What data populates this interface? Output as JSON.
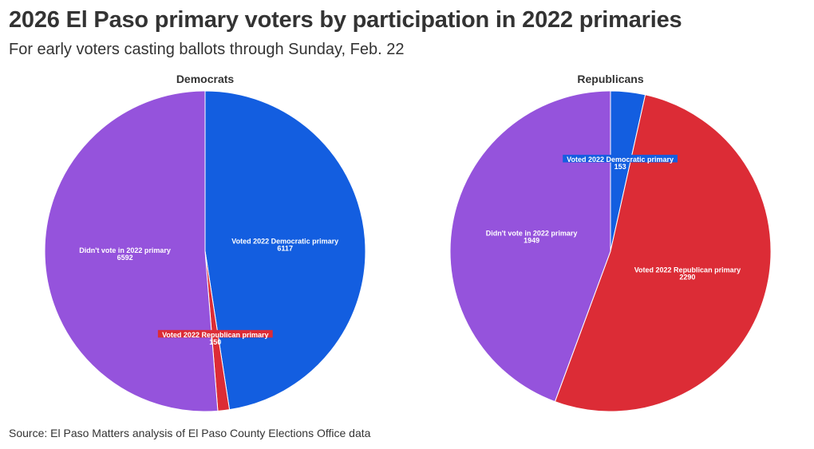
{
  "title": "2026 El Paso primary voters by participation in 2022 primaries",
  "subtitle": "For early voters casting ballots through Sunday, Feb. 22",
  "source": "Source: El Paso Matters analysis of El Paso County Elections Office data",
  "colors": {
    "democratic": "#135ee0",
    "republican": "#dc2c36",
    "didnt_vote": "#9553dc"
  },
  "chart_data": [
    {
      "type": "pie",
      "title": "Democrats",
      "slices": [
        {
          "label": "Voted 2022 Democratic primary",
          "value": 6117,
          "color": "#135ee0"
        },
        {
          "label": "Voted 2022 Republican primary",
          "value": 150,
          "color": "#dc2c36"
        },
        {
          "label": "Didn't vote in 2022 primary",
          "value": 6592,
          "color": "#9553dc"
        }
      ]
    },
    {
      "type": "pie",
      "title": "Republicans",
      "slices": [
        {
          "label": "Voted 2022 Democratic primary",
          "value": 153,
          "color": "#135ee0"
        },
        {
          "label": "Voted 2022 Republican primary",
          "value": 2290,
          "color": "#dc2c36"
        },
        {
          "label": "Didn't vote in 2022 primary",
          "value": 1949,
          "color": "#9553dc"
        }
      ]
    }
  ]
}
